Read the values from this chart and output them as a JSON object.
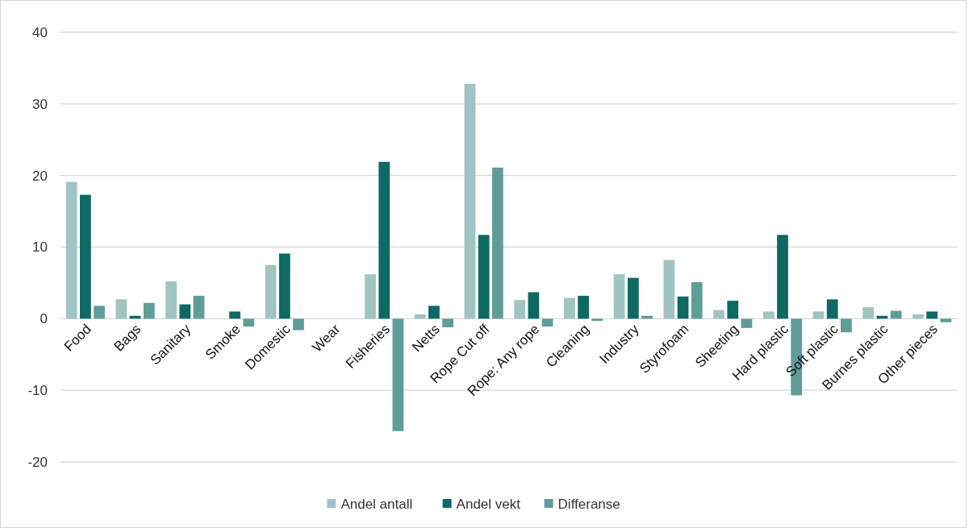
{
  "chart_data": {
    "type": "bar",
    "categories": [
      "Food",
      "Bags",
      "Sanitary",
      "Smoke",
      "Domestic",
      "Wear",
      "Fisheries",
      "Netts",
      "Rope Cut off",
      "Rope: Any rope",
      "Cleaning",
      "Industry",
      "Styrofoam",
      "Sheeting",
      "Hard plastic",
      "Soft plastic",
      "Burnes plastic",
      "Other pieces"
    ],
    "series": [
      {
        "name": "Andel antall",
        "color": "#a0c4c1",
        "values": [
          19.1,
          2.7,
          5.2,
          0,
          7.5,
          0,
          6.2,
          0.6,
          32.8,
          2.6,
          2.9,
          6.2,
          8.2,
          1.2,
          1.0,
          1.0,
          1.6,
          0.6
        ]
      },
      {
        "name": "Andel vekt",
        "color": "#0e6963",
        "values": [
          17.3,
          0.4,
          2.0,
          1.0,
          9.1,
          0,
          21.9,
          1.8,
          11.7,
          3.7,
          3.2,
          5.7,
          3.1,
          2.5,
          11.7,
          2.7,
          0.4,
          1.0
        ]
      },
      {
        "name": "Differanse",
        "color": "#5f9d99",
        "values": [
          1.8,
          2.2,
          3.2,
          -1.1,
          -1.6,
          0,
          -15.7,
          -1.2,
          21.1,
          -1.1,
          -0.3,
          0.4,
          5.1,
          -1.3,
          -10.7,
          -1.9,
          1.1,
          -0.5
        ]
      }
    ],
    "ylim": [
      -20,
      40
    ],
    "yticks": [
      -20,
      -10,
      0,
      10,
      20,
      30,
      40
    ],
    "grid": "y",
    "legend": "bottom"
  }
}
